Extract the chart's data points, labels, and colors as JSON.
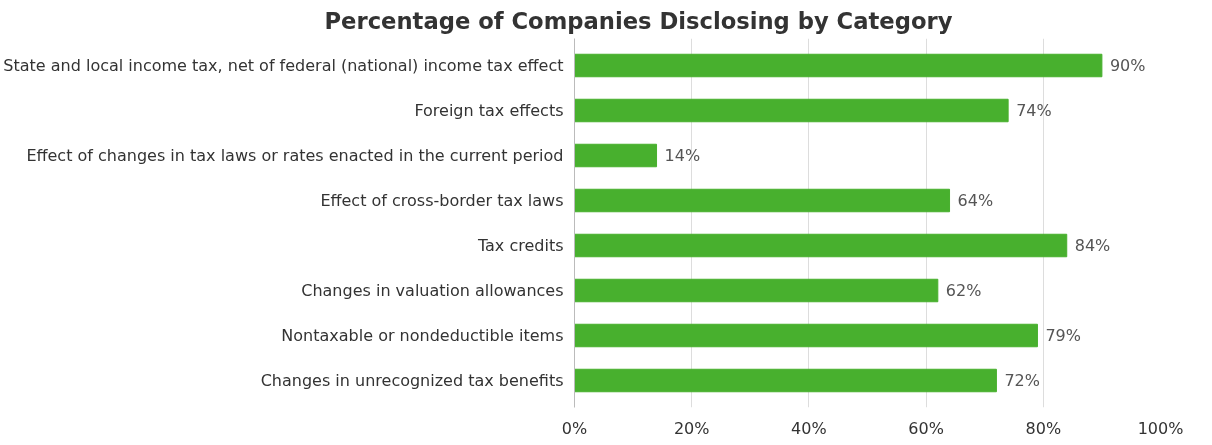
{
  "chart_data": {
    "type": "bar",
    "orientation": "horizontal",
    "title": "Percentage of Companies Disclosing by Category",
    "categories": [
      "State and local income tax, net of federal (national) income tax effect",
      "Foreign tax effects",
      "Effect of changes in tax laws or rates enacted in the current period",
      "Effect of cross-border tax laws",
      "Tax credits",
      "Changes in valuation allowances",
      "Nontaxable or nondeductible items",
      "Changes in unrecognized tax benefits"
    ],
    "values": [
      90,
      74,
      14,
      64,
      84,
      62,
      79,
      72
    ],
    "value_labels": [
      "90%",
      "74%",
      "14%",
      "64%",
      "84%",
      "62%",
      "79%",
      "72%"
    ],
    "color": "#48b02e",
    "xlim": [
      0,
      100
    ],
    "xticks": [
      {
        "value": 0,
        "label": "0%"
      },
      {
        "value": 20,
        "label": "20%"
      },
      {
        "value": 40,
        "label": "40%"
      },
      {
        "value": 60,
        "label": "60%"
      },
      {
        "value": 80,
        "label": "80%"
      },
      {
        "value": 100,
        "label": "100%"
      }
    ],
    "grid": "x"
  }
}
